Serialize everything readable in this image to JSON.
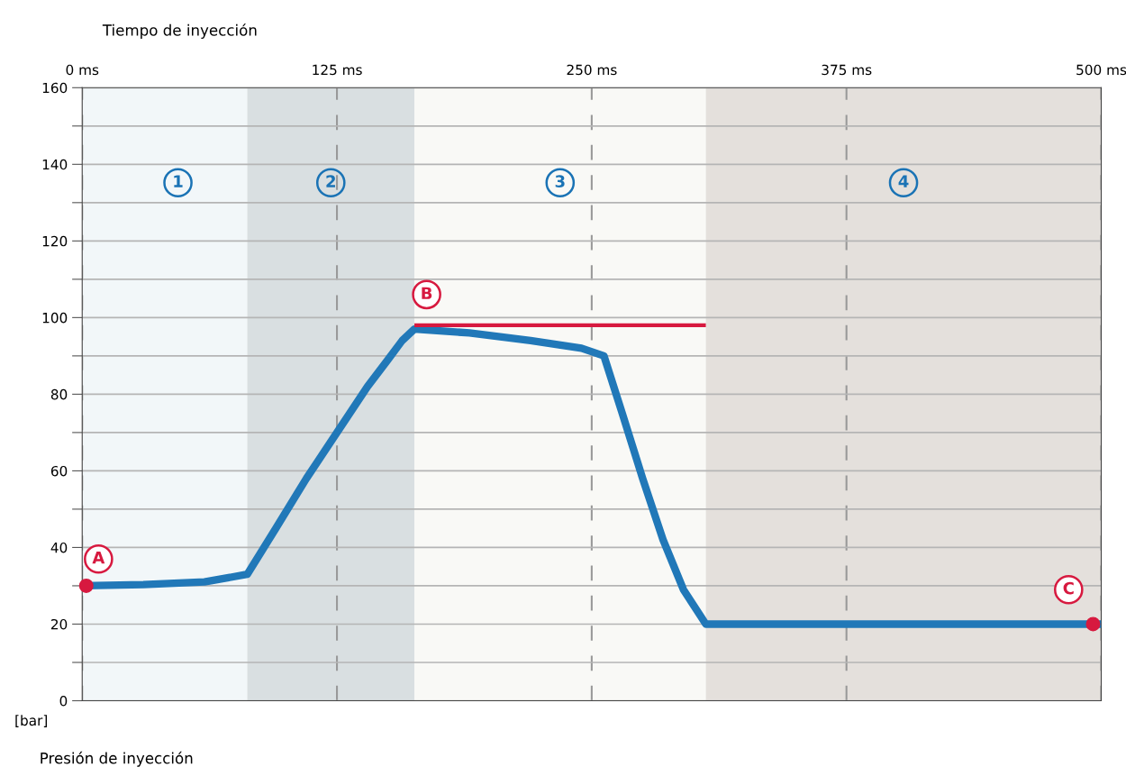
{
  "chart_data": {
    "type": "line",
    "xlabel": "Tiempo de inyección",
    "ylabel": "[bar]",
    "xlim": [
      0,
      500
    ],
    "ylim": [
      0,
      160
    ],
    "xticks": [
      {
        "value": 0,
        "label": "0 ms"
      },
      {
        "value": 125,
        "label": "125 ms"
      },
      {
        "value": 250,
        "label": "250 ms"
      },
      {
        "value": 375,
        "label": "375 ms"
      },
      {
        "value": 500,
        "label": "500 ms"
      }
    ],
    "yticks": [
      0,
      {
        "value": 10,
        "label": null
      },
      20,
      {
        "value": 30,
        "label": null
      },
      40,
      {
        "value": 50,
        "label": null
      },
      60,
      {
        "value": 70,
        "label": null
      },
      80,
      {
        "value": 90,
        "label": null
      },
      100,
      {
        "value": 110,
        "label": null
      },
      120,
      {
        "value": 130,
        "label": null
      },
      140,
      {
        "value": 150,
        "label": null
      },
      160
    ],
    "grid": true,
    "legend": false,
    "marker": "none",
    "line_style": "solid",
    "series": [
      {
        "color": "#2178b8",
        "x": [
          1,
          30,
          60,
          81,
          95,
          110,
          125,
          140,
          150,
          157,
          163,
          190,
          220,
          245,
          256,
          265,
          275,
          285,
          295,
          306,
          400,
          500
        ],
        "values": [
          30,
          30.3,
          31,
          33,
          45,
          58,
          70,
          82,
          89,
          94,
          97,
          96,
          94,
          92,
          90,
          75,
          58,
          42,
          29,
          20,
          20,
          20
        ]
      },
      {
        "type": "line",
        "color": "#d7193f",
        "x": [
          163,
          306
        ],
        "values": [
          98,
          98
        ]
      },
      {
        "type": "scatter",
        "marker": "circle",
        "color": "#d7193f",
        "x": [
          2,
          496
        ],
        "values": [
          30,
          20
        ]
      }
    ],
    "bands": [
      {
        "axis": "x",
        "from": 0,
        "to": 81,
        "color": "#f2f7f9",
        "label": "1"
      },
      {
        "axis": "x",
        "from": 81,
        "to": 163,
        "color": "#d9dfe1",
        "label": "2"
      },
      {
        "axis": "x",
        "from": 163,
        "to": 306,
        "color": "#f9f9f6",
        "label": "3"
      },
      {
        "axis": "x",
        "from": 306,
        "to": 500,
        "color": "#e4e0dc",
        "label": "4"
      }
    ],
    "annotations": [
      {
        "text": "A",
        "x": 8,
        "y": 37
      },
      {
        "text": "B",
        "x": 169,
        "y": 106
      },
      {
        "text": "C",
        "x": 484,
        "y": 29
      },
      "Presión de inyección"
    ]
  }
}
